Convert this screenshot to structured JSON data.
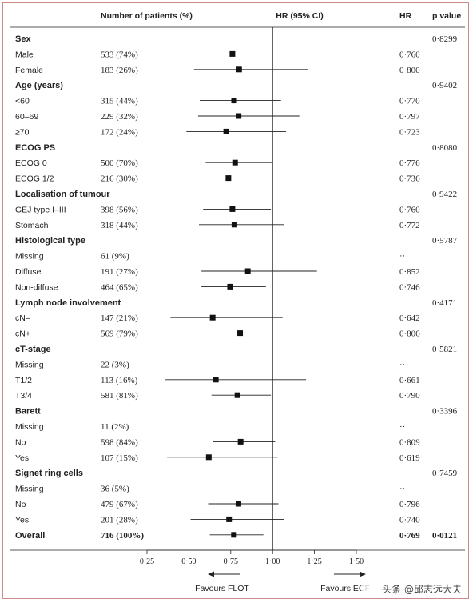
{
  "chart_data": {
    "type": "forest",
    "headers": {
      "patients": "Number of patients (%)",
      "hr_ci": "HR (95% CI)",
      "hr": "HR",
      "p": "p value"
    },
    "xaxis": {
      "range": [
        0.25,
        1.5
      ],
      "ticks": [
        "0·25",
        "0·50",
        "0·75",
        "1·00",
        "1·25",
        "1·50"
      ],
      "ref_line": 1.0
    },
    "favours_left": "Favours FLOT",
    "favours_right": "Favours ECF",
    "rows": [
      {
        "kind": "group",
        "label": "Sex",
        "p": "0·8299"
      },
      {
        "kind": "item",
        "label": "Male",
        "n": "533 (74%)",
        "hr": 0.76,
        "lo": 0.6,
        "hi": 0.965,
        "hr_text": "0·760"
      },
      {
        "kind": "item",
        "label": "Female",
        "n": "183 (26%)",
        "hr": 0.8,
        "lo": 0.53,
        "hi": 1.21,
        "hr_text": "0·800"
      },
      {
        "kind": "group",
        "label": "Age (years)",
        "p": "0·9402"
      },
      {
        "kind": "item",
        "label": "<60",
        "n": "315 (44%)",
        "hr": 0.77,
        "lo": 0.565,
        "hi": 1.05,
        "hr_text": "0·770"
      },
      {
        "kind": "item",
        "label": "60–69",
        "n": "229 (32%)",
        "hr": 0.797,
        "lo": 0.555,
        "hi": 1.16,
        "hr_text": "0·797"
      },
      {
        "kind": "item",
        "label": "≥70",
        "n": "172 (24%)",
        "hr": 0.723,
        "lo": 0.485,
        "hi": 1.08,
        "hr_text": "0·723"
      },
      {
        "kind": "group",
        "label": "ECOG PS",
        "p": "0·8080"
      },
      {
        "kind": "item",
        "label": "ECOG 0",
        "n": "500 (70%)",
        "hr": 0.776,
        "lo": 0.6,
        "hi": 1.0,
        "hr_text": "0·776"
      },
      {
        "kind": "item",
        "label": "ECOG 1/2",
        "n": "216 (30%)",
        "hr": 0.736,
        "lo": 0.515,
        "hi": 1.05,
        "hr_text": "0·736"
      },
      {
        "kind": "group",
        "label": "Localisation of tumour",
        "p": "0·9422"
      },
      {
        "kind": "item",
        "label": "GEJ type I–III",
        "n": "398 (56%)",
        "hr": 0.76,
        "lo": 0.585,
        "hi": 0.99,
        "hr_text": "0·760"
      },
      {
        "kind": "item",
        "label": "Stomach",
        "n": "318 (44%)",
        "hr": 0.772,
        "lo": 0.56,
        "hi": 1.07,
        "hr_text": "0·772"
      },
      {
        "kind": "group",
        "label": "Histological type",
        "p": "0·5787"
      },
      {
        "kind": "item",
        "label": "Missing",
        "n": "61 (9%)",
        "hr": null,
        "hr_text": "··"
      },
      {
        "kind": "item",
        "label": "Diffuse",
        "n": "191 (27%)",
        "hr": 0.852,
        "lo": 0.575,
        "hi": 1.265,
        "hr_text": "0·852"
      },
      {
        "kind": "item",
        "label": "Non-diffuse",
        "n": "464 (65%)",
        "hr": 0.746,
        "lo": 0.575,
        "hi": 0.96,
        "hr_text": "0·746"
      },
      {
        "kind": "group",
        "label": "Lymph node involvement",
        "p": "0·4171"
      },
      {
        "kind": "item",
        "label": "cN–",
        "n": "147 (21%)",
        "hr": 0.642,
        "lo": 0.39,
        "hi": 1.06,
        "hr_text": "0·642"
      },
      {
        "kind": "item",
        "label": "cN+",
        "n": "569 (79%)",
        "hr": 0.806,
        "lo": 0.645,
        "hi": 1.01,
        "hr_text": "0·806"
      },
      {
        "kind": "group",
        "label": "cT-stage",
        "p": "0·5821"
      },
      {
        "kind": "item",
        "label": "Missing",
        "n": "22 (3%)",
        "hr": null,
        "hr_text": "··"
      },
      {
        "kind": "item",
        "label": "T1/2",
        "n": "113 (16%)",
        "hr": 0.661,
        "lo": 0.36,
        "hi": 1.2,
        "hr_text": "0·661"
      },
      {
        "kind": "item",
        "label": "T3/4",
        "n": "581 (81%)",
        "hr": 0.79,
        "lo": 0.635,
        "hi": 0.99,
        "hr_text": "0·790"
      },
      {
        "kind": "group",
        "label": "Barett",
        "p": "0·3396"
      },
      {
        "kind": "item",
        "label": "Missing",
        "n": "11 (2%)",
        "hr": null,
        "hr_text": "··"
      },
      {
        "kind": "item",
        "label": "No",
        "n": "598 (84%)",
        "hr": 0.809,
        "lo": 0.645,
        "hi": 1.015,
        "hr_text": "0·809"
      },
      {
        "kind": "item",
        "label": "Yes",
        "n": "107 (15%)",
        "hr": 0.619,
        "lo": 0.37,
        "hi": 1.03,
        "hr_text": "0·619"
      },
      {
        "kind": "group",
        "label": "Signet ring cells",
        "p": "0·7459"
      },
      {
        "kind": "item",
        "label": "Missing",
        "n": "36 (5%)",
        "hr": null,
        "hr_text": "··"
      },
      {
        "kind": "item",
        "label": "No",
        "n": "479 (67%)",
        "hr": 0.796,
        "lo": 0.615,
        "hi": 1.035,
        "hr_text": "0·796"
      },
      {
        "kind": "item",
        "label": "Yes",
        "n": "201 (28%)",
        "hr": 0.74,
        "lo": 0.51,
        "hi": 1.07,
        "hr_text": "0·740"
      },
      {
        "kind": "overall",
        "label": "Overall",
        "n": "716 (100%)",
        "hr": 0.769,
        "lo": 0.625,
        "hi": 0.945,
        "hr_text": "0·769",
        "p": "0·0121"
      }
    ]
  },
  "watermark": "头条 @邱志远大夫"
}
